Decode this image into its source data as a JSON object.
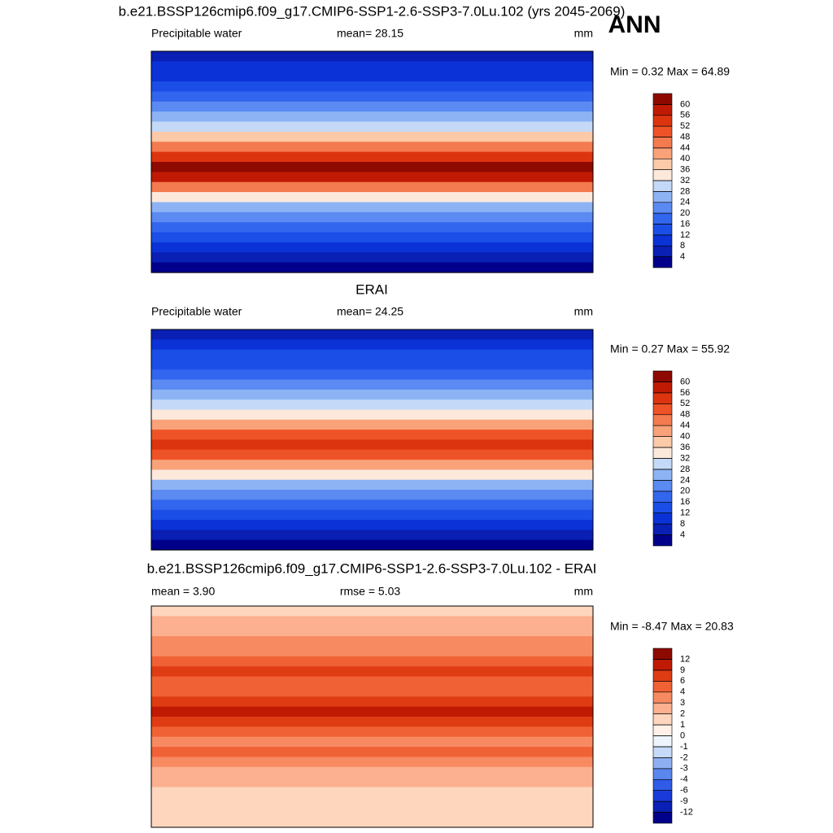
{
  "season": "ANN",
  "panels": [
    {
      "title": "b.e21.BSSP126cmip6.f09_g17.CMIP6-SSP1-2.6-SSP3-7.0Lu.102 (yrs 2045-2069)",
      "left_label": "Precipitable water",
      "center_label": "mean=  28.15",
      "units": "mm",
      "minmax": "Min =   0.32 Max =  64.89",
      "levels": [
        4,
        8,
        12,
        16,
        20,
        24,
        28,
        32,
        36,
        40,
        44,
        48,
        52,
        56,
        60
      ],
      "colors": [
        "#00008b",
        "#0a1fb3",
        "#0a32d6",
        "#1a4ee6",
        "#3366ee",
        "#5a8af2",
        "#8db3f5",
        "#c4d9f7",
        "#fde9dc",
        "#fcc9a9",
        "#f9a27a",
        "#f47a4f",
        "#ee5327",
        "#dd3410",
        "#c01a05",
        "#8e0a00"
      ]
    },
    {
      "title": "ERAI",
      "left_label": "Precipitable water",
      "center_label": "mean=  24.25",
      "units": "mm",
      "minmax": "Min =   0.27 Max =  55.92",
      "levels": [
        4,
        8,
        12,
        16,
        20,
        24,
        28,
        32,
        36,
        40,
        44,
        48,
        52,
        56,
        60
      ],
      "colors": [
        "#00008b",
        "#0a1fb3",
        "#0a32d6",
        "#1a4ee6",
        "#3366ee",
        "#5a8af2",
        "#8db3f5",
        "#c4d9f7",
        "#fde9dc",
        "#fcc9a9",
        "#f9a27a",
        "#f47a4f",
        "#ee5327",
        "#dd3410",
        "#c01a05",
        "#8e0a00"
      ]
    },
    {
      "title": "b.e21.BSSP126cmip6.f09_g17.CMIP6-SSP1-2.6-SSP3-7.0Lu.102 - ERAI",
      "left_label": "mean =   3.90",
      "center_label": "rmse =   5.03",
      "units": "mm",
      "minmax": "Min =  -8.47 Max =  20.83",
      "levels": [
        -12,
        -9,
        -6,
        -4,
        -3,
        -2,
        -1,
        0,
        1,
        2,
        3,
        4,
        6,
        9,
        12
      ],
      "colors": [
        "#00008b",
        "#0a1fb3",
        "#1a3ad9",
        "#2f5be6",
        "#5a86ee",
        "#8eb0f3",
        "#c6d9f8",
        "#eef4fc",
        "#fff1e8",
        "#fdd6bd",
        "#fcb08f",
        "#f88a62",
        "#f06236",
        "#e03c14",
        "#c01a05",
        "#8e0a00"
      ]
    }
  ]
}
